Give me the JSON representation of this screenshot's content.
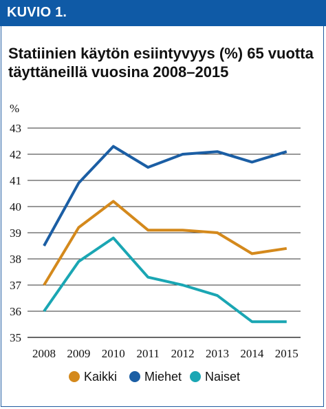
{
  "header": {
    "label": "KUVIO 1."
  },
  "title_lines": [
    "Statiinien käytön esiintyvyys (%) 65 vuotta",
    "täyttäneillä vuosina 2008–2015"
  ],
  "colors": {
    "header_bg": "#0f5aa6",
    "grid": "#333333",
    "Kaikki": "#d4891c",
    "Miehet": "#1b5ea4",
    "Naiset": "#1aa6b3"
  },
  "chart_data": {
    "type": "line",
    "title": "Statiinien käytön esiintyvyys (%) 65 vuotta täyttäneillä vuosina 2008–2015",
    "ylabel": "%",
    "xlabel": "",
    "x": [
      "2008",
      "2009",
      "2010",
      "2011",
      "2012",
      "2013",
      "2014",
      "2015"
    ],
    "ylim": [
      35,
      43
    ],
    "yticks": [
      "35",
      "36",
      "37",
      "38",
      "39",
      "40",
      "41",
      "42",
      "43"
    ],
    "grid": true,
    "legend_position": "bottom",
    "series": [
      {
        "name": "Kaikki",
        "color": "#d4891c",
        "values": [
          37.0,
          39.2,
          40.2,
          39.1,
          39.1,
          39.0,
          38.2,
          38.4
        ]
      },
      {
        "name": "Miehet",
        "color": "#1b5ea4",
        "values": [
          38.5,
          40.9,
          42.3,
          41.5,
          42.0,
          42.1,
          41.7,
          42.1
        ]
      },
      {
        "name": "Naiset",
        "color": "#1aa6b3",
        "values": [
          36.0,
          37.9,
          38.8,
          37.3,
          37.0,
          36.6,
          35.6,
          35.6
        ]
      }
    ]
  }
}
